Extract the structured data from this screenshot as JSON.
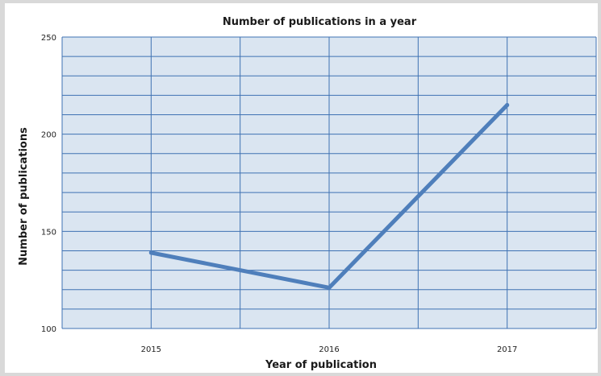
{
  "chart_data": {
    "type": "line",
    "title": "Number of publications in a year",
    "xlabel": "Year of publication",
    "ylabel": "Number of publications",
    "categories": [
      "2015",
      "2016",
      "2017"
    ],
    "series": [
      {
        "values": [
          139,
          121,
          215
        ]
      }
    ],
    "ylim": [
      100,
      250
    ],
    "yticks": [
      "100",
      "150",
      "200",
      "250"
    ],
    "grid": true,
    "colors": {
      "line": "#4f7fbb",
      "plot_background": "#dae5f1",
      "gridline": "#3f72b3"
    }
  }
}
